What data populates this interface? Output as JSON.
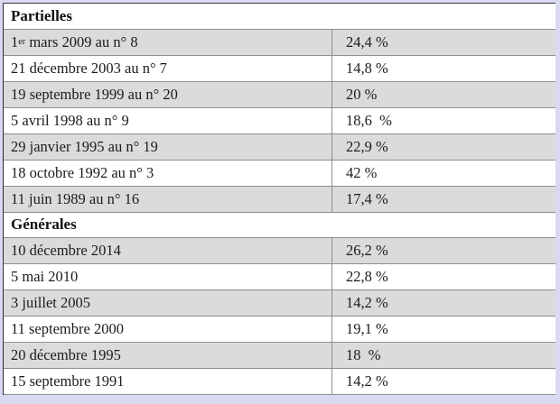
{
  "page": {
    "background_color": "#d9d9f1",
    "row_shade_color": "#dbdbdb",
    "divider_color": "#8f8f8f",
    "frame_color": "#2e2e2e"
  },
  "table": {
    "columns": [
      "date",
      "percentage"
    ],
    "rows": [
      {
        "kind": "section",
        "label": "Partielles"
      },
      {
        "kind": "data",
        "date_pre": "1",
        "date_sup": "er",
        "date_rest": " mars 2009 au n° 8",
        "value": "24,4 %"
      },
      {
        "kind": "data",
        "date_rest": "21 décembre 2003 au n° 7",
        "value": "14,8 %"
      },
      {
        "kind": "data",
        "date_rest": "19 septembre 1999 au n° 20",
        "value": "20 %"
      },
      {
        "kind": "data",
        "date_rest": "5 avril 1998 au n° 9",
        "value": "18,6  %"
      },
      {
        "kind": "data",
        "date_rest": "29 janvier 1995 au n° 19",
        "value": "22,9 %"
      },
      {
        "kind": "data",
        "date_rest": "18 octobre 1992 au n° 3",
        "value": "42 %"
      },
      {
        "kind": "data",
        "date_rest": "11 juin 1989 au n° 16",
        "value": "17,4 %"
      },
      {
        "kind": "section",
        "label": "Générales"
      },
      {
        "kind": "data",
        "date_rest": "10 décembre 2014",
        "value": "26,2 %"
      },
      {
        "kind": "data",
        "date_rest": "5 mai 2010",
        "value": "22,8 %"
      },
      {
        "kind": "data",
        "date_rest": "3 juillet 2005",
        "value": "14,2 %"
      },
      {
        "kind": "data",
        "date_rest": "11 septembre 2000",
        "value": "19,1 %"
      },
      {
        "kind": "data",
        "date_rest": "20 décembre 1995",
        "value": "18  %"
      },
      {
        "kind": "data",
        "date_rest": "15 septembre 1991",
        "value": "14,2 %"
      }
    ]
  }
}
